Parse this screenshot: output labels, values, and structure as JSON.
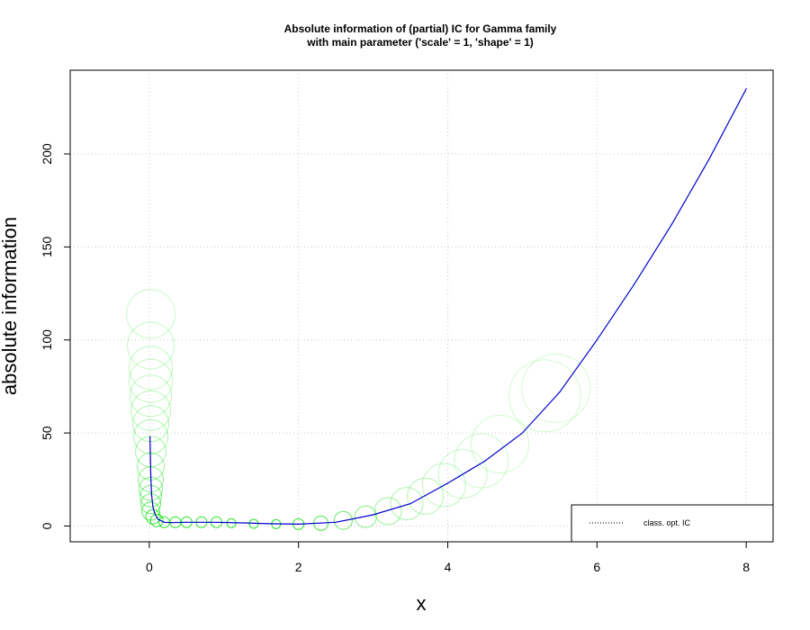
{
  "chart_data": {
    "type": "line",
    "title_line1": "Absolute information of (partial) IC for Gamma family",
    "title_line2": "with main parameter ('scale' =  1, 'shape' =  1)",
    "xlabel": "x",
    "ylabel": "absolute information",
    "xlim": [
      -1.06,
      8.36
    ],
    "ylim": [
      -8.5,
      245
    ],
    "x_ticks": [
      0,
      2,
      4,
      6,
      8
    ],
    "y_ticks": [
      0,
      50,
      100,
      150,
      200
    ],
    "x_tick_labels": [
      "0",
      "2",
      "4",
      "6",
      "8"
    ],
    "y_tick_labels": [
      "0",
      "50",
      "100",
      "150",
      "200"
    ],
    "grid": true,
    "grid_style": "dotted",
    "legend": {
      "position": "bottom-right",
      "entries": [
        "class. opt. IC"
      ]
    },
    "series": [
      {
        "name": "class. opt. IC",
        "color": "#0000cd",
        "x": [
          0.01,
          0.02,
          0.03,
          0.05,
          0.08,
          0.12,
          0.2,
          0.3,
          0.5,
          0.8,
          1.0,
          1.3,
          1.6,
          2.0,
          2.5,
          3.0,
          3.5,
          4.0,
          4.5,
          5.0,
          5.5,
          6.0,
          6.5,
          7.0,
          7.5,
          8.0
        ],
        "y": [
          48,
          28,
          17,
          10,
          6,
          3.5,
          2,
          1.8,
          2,
          2,
          1.9,
          1.6,
          1.2,
          1,
          2,
          6,
          12,
          23,
          35,
          50,
          72,
          100,
          130,
          162,
          197,
          235
        ]
      }
    ],
    "bubbles": {
      "color": "#00e000",
      "note_color_light": "#b8f0b8",
      "points": [
        {
          "x": 0.02,
          "y": 114,
          "r": 27
        },
        {
          "x": 0.02,
          "y": 97,
          "r": 26
        },
        {
          "x": 0.02,
          "y": 85,
          "r": 24
        },
        {
          "x": 0.02,
          "y": 78,
          "r": 24
        },
        {
          "x": 0.02,
          "y": 70,
          "r": 23
        },
        {
          "x": 0.02,
          "y": 62,
          "r": 22
        },
        {
          "x": 0.02,
          "y": 55,
          "r": 20
        },
        {
          "x": 0.02,
          "y": 48,
          "r": 19
        },
        {
          "x": 0.02,
          "y": 40,
          "r": 17
        },
        {
          "x": 0.02,
          "y": 32,
          "r": 15
        },
        {
          "x": 0.02,
          "y": 25,
          "r": 14
        },
        {
          "x": 0.02,
          "y": 20,
          "r": 13
        },
        {
          "x": 0.02,
          "y": 16,
          "r": 12
        },
        {
          "x": 0.02,
          "y": 12,
          "r": 11
        },
        {
          "x": 0.02,
          "y": 8,
          "r": 10
        },
        {
          "x": 0.05,
          "y": 5,
          "r": 8
        },
        {
          "x": 0.1,
          "y": 3,
          "r": 7
        },
        {
          "x": 0.2,
          "y": 2,
          "r": 6
        },
        {
          "x": 0.35,
          "y": 2,
          "r": 6
        },
        {
          "x": 0.5,
          "y": 2,
          "r": 6
        },
        {
          "x": 0.7,
          "y": 2,
          "r": 6
        },
        {
          "x": 0.9,
          "y": 2,
          "r": 6
        },
        {
          "x": 1.1,
          "y": 1.5,
          "r": 5
        },
        {
          "x": 1.4,
          "y": 1.2,
          "r": 5
        },
        {
          "x": 1.7,
          "y": 1,
          "r": 5
        },
        {
          "x": 2.0,
          "y": 1,
          "r": 6
        },
        {
          "x": 2.3,
          "y": 1.5,
          "r": 8
        },
        {
          "x": 2.6,
          "y": 3,
          "r": 10
        },
        {
          "x": 2.9,
          "y": 5,
          "r": 12
        },
        {
          "x": 3.2,
          "y": 8,
          "r": 15
        },
        {
          "x": 3.45,
          "y": 12,
          "r": 18
        },
        {
          "x": 3.7,
          "y": 16,
          "r": 20
        },
        {
          "x": 3.95,
          "y": 22,
          "r": 24
        },
        {
          "x": 4.2,
          "y": 28,
          "r": 27
        },
        {
          "x": 4.45,
          "y": 35,
          "r": 30
        },
        {
          "x": 4.7,
          "y": 44,
          "r": 32
        },
        {
          "x": 5.3,
          "y": 70,
          "r": 40
        },
        {
          "x": 5.45,
          "y": 74,
          "r": 38
        }
      ]
    }
  }
}
